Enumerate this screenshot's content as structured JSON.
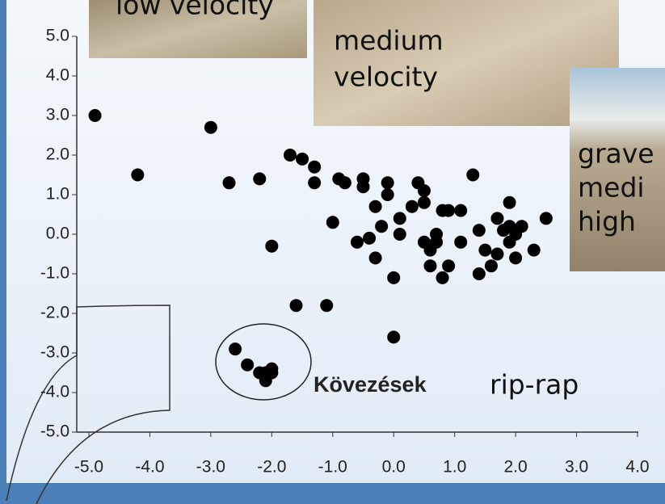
{
  "chart_data": {
    "type": "scatter",
    "x": [
      -4.9,
      -4.2,
      -3.0,
      -2.7,
      -2.2,
      -1.7,
      -1.5,
      -1.3,
      -1.3,
      -0.9,
      -0.8,
      -0.5,
      -0.5,
      -0.1,
      -0.1,
      0.4,
      0.5,
      0.5,
      0.3,
      -0.3,
      -0.2,
      0.1,
      0.1,
      -0.4,
      -0.6,
      -0.3,
      -1.0,
      -2.0,
      0.0,
      1.3,
      0.8,
      0.9,
      1.1,
      0.7,
      0.5,
      0.6,
      0.7,
      0.6,
      0.9,
      0.8,
      1.1,
      1.4,
      1.4,
      1.5,
      1.6,
      1.7,
      1.7,
      1.8,
      1.9,
      2.0,
      1.9,
      2.0,
      2.1,
      1.9,
      2.3,
      2.5,
      -1.6,
      -1.1,
      0.0,
      -2.6,
      -2.4,
      -2.2,
      -2.1,
      -2.0,
      -2.0,
      -2.1
    ],
    "values": [
      3.0,
      1.5,
      2.7,
      1.3,
      1.4,
      2.0,
      1.9,
      1.7,
      1.3,
      1.4,
      1.3,
      1.4,
      1.2,
      1.3,
      1.0,
      1.3,
      1.1,
      0.8,
      0.7,
      0.7,
      0.2,
      0.4,
      0.0,
      -0.1,
      -0.2,
      -0.6,
      0.3,
      -0.3,
      -1.1,
      1.5,
      0.6,
      0.6,
      0.6,
      0.0,
      -0.2,
      -0.4,
      -0.2,
      -0.8,
      -0.8,
      -1.1,
      -0.2,
      -1.0,
      0.1,
      -0.4,
      -0.8,
      -0.5,
      0.4,
      0.1,
      -0.2,
      -0.6,
      0.2,
      0.0,
      0.2,
      0.8,
      -0.4,
      0.4,
      -1.8,
      -1.8,
      -2.6,
      -2.9,
      -3.3,
      -3.5,
      -3.7,
      -3.4,
      -3.5,
      -3.5
    ],
    "color": "#000000",
    "xlim": [
      -5,
      4
    ],
    "ylim": [
      -5,
      5
    ],
    "xticks": [
      {
        "value": -5,
        "label": "-5.0"
      },
      {
        "value": -4,
        "label": "-4.0"
      },
      {
        "value": -3,
        "label": "-3.0"
      },
      {
        "value": -2,
        "label": "-2.0"
      },
      {
        "value": -1,
        "label": "-1.0"
      },
      {
        "value": 0,
        "label": "0.0"
      },
      {
        "value": 1,
        "label": "1.0"
      },
      {
        "value": 2,
        "label": "2.0"
      },
      {
        "value": 3,
        "label": "3.0"
      },
      {
        "value": 4,
        "label": "4.0"
      }
    ],
    "yticks": [
      {
        "value": 5,
        "label": "5.0"
      },
      {
        "value": 4,
        "label": "4.0"
      },
      {
        "value": 3,
        "label": "3.0"
      },
      {
        "value": 2,
        "label": "2.0"
      },
      {
        "value": 1,
        "label": "1.0"
      },
      {
        "value": 0,
        "label": "0.0"
      },
      {
        "value": -1,
        "label": "-1.0"
      },
      {
        "value": -2,
        "label": "-2.0"
      },
      {
        "value": -3,
        "label": "-3.0"
      },
      {
        "value": -4,
        "label": "-4.0"
      },
      {
        "value": -5,
        "label": "-5.0"
      }
    ],
    "annotations": [
      "low velocity",
      "medium",
      "velocity",
      "grave",
      "medi",
      "high",
      "Kövezések",
      "rip-rap"
    ]
  }
}
